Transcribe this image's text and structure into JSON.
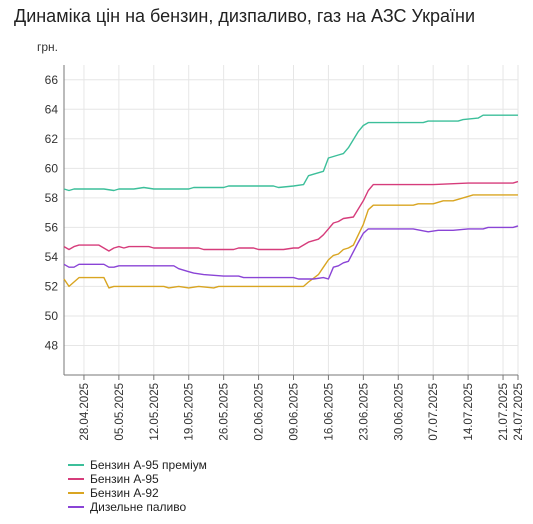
{
  "chart_data": {
    "type": "line",
    "title": "Динаміка цін на бензин, дизпаливо, газ на АЗС України",
    "ylabel": "грн.",
    "xlabel": "",
    "ylim": [
      46,
      67
    ],
    "y_ticks": [
      48,
      50,
      52,
      54,
      56,
      58,
      60,
      62,
      64,
      66
    ],
    "grid": true,
    "legend_placement": "bottom-left",
    "x_start": "2025-04-24",
    "x_end": "2025-07-24",
    "x_tick_labels": [
      {
        "label": "28.04.2025",
        "date": "2025-04-28"
      },
      {
        "label": "05.05.2025",
        "date": "2025-05-05"
      },
      {
        "label": "12.05.2025",
        "date": "2025-05-12"
      },
      {
        "label": "19.05.2025",
        "date": "2025-05-19"
      },
      {
        "label": "26.05.2025",
        "date": "2025-05-26"
      },
      {
        "label": "02.06.2025",
        "date": "2025-06-02"
      },
      {
        "label": "09.06.2025",
        "date": "2025-06-09"
      },
      {
        "label": "16.06.2025",
        "date": "2025-06-16"
      },
      {
        "label": "23.06.2025",
        "date": "2025-06-23"
      },
      {
        "label": "30.06.2025",
        "date": "2025-06-30"
      },
      {
        "label": "07.07.2025",
        "date": "2025-07-07"
      },
      {
        "label": "14.07.2025",
        "date": "2025-07-14"
      },
      {
        "label": "21.07.2025",
        "date": "2025-07-21"
      },
      {
        "label": "24.07.2025",
        "date": "2025-07-24"
      }
    ],
    "series": [
      {
        "name": "Бензин А-95 преміум",
        "color": "#3cbf9a",
        "points": [
          [
            "2025-04-24",
            58.6
          ],
          [
            "2025-04-25",
            58.5
          ],
          [
            "2025-04-26",
            58.6
          ],
          [
            "2025-04-28",
            58.6
          ],
          [
            "2025-05-02",
            58.6
          ],
          [
            "2025-05-04",
            58.5
          ],
          [
            "2025-05-05",
            58.6
          ],
          [
            "2025-05-08",
            58.6
          ],
          [
            "2025-05-10",
            58.7
          ],
          [
            "2025-05-12",
            58.6
          ],
          [
            "2025-05-19",
            58.6
          ],
          [
            "2025-05-20",
            58.7
          ],
          [
            "2025-05-26",
            58.7
          ],
          [
            "2025-05-27",
            58.8
          ],
          [
            "2025-06-02",
            58.8
          ],
          [
            "2025-06-05",
            58.8
          ],
          [
            "2025-06-06",
            58.7
          ],
          [
            "2025-06-09",
            58.8
          ],
          [
            "2025-06-11",
            58.9
          ],
          [
            "2025-06-12",
            59.5
          ],
          [
            "2025-06-13",
            59.6
          ],
          [
            "2025-06-15",
            59.8
          ],
          [
            "2025-06-16",
            60.7
          ],
          [
            "2025-06-18",
            60.9
          ],
          [
            "2025-06-19",
            61.0
          ],
          [
            "2025-06-20",
            61.4
          ],
          [
            "2025-06-22",
            62.5
          ],
          [
            "2025-06-23",
            62.9
          ],
          [
            "2025-06-24",
            63.1
          ],
          [
            "2025-06-30",
            63.1
          ],
          [
            "2025-07-05",
            63.1
          ],
          [
            "2025-07-06",
            63.2
          ],
          [
            "2025-07-12",
            63.2
          ],
          [
            "2025-07-13",
            63.3
          ],
          [
            "2025-07-16",
            63.4
          ],
          [
            "2025-07-17",
            63.6
          ],
          [
            "2025-07-24",
            63.6
          ]
        ]
      },
      {
        "name": "Бензин А-95",
        "color": "#d63c7b",
        "points": [
          [
            "2025-04-24",
            54.7
          ],
          [
            "2025-04-25",
            54.5
          ],
          [
            "2025-04-26",
            54.7
          ],
          [
            "2025-04-27",
            54.8
          ],
          [
            "2025-05-01",
            54.8
          ],
          [
            "2025-05-03",
            54.4
          ],
          [
            "2025-05-04",
            54.6
          ],
          [
            "2025-05-05",
            54.7
          ],
          [
            "2025-05-06",
            54.6
          ],
          [
            "2025-05-07",
            54.7
          ],
          [
            "2025-05-11",
            54.7
          ],
          [
            "2025-05-12",
            54.6
          ],
          [
            "2025-05-21",
            54.6
          ],
          [
            "2025-05-22",
            54.5
          ],
          [
            "2025-05-28",
            54.5
          ],
          [
            "2025-05-29",
            54.6
          ],
          [
            "2025-06-01",
            54.6
          ],
          [
            "2025-06-02",
            54.5
          ],
          [
            "2025-06-07",
            54.5
          ],
          [
            "2025-06-09",
            54.6
          ],
          [
            "2025-06-10",
            54.6
          ],
          [
            "2025-06-12",
            55.0
          ],
          [
            "2025-06-14",
            55.2
          ],
          [
            "2025-06-15",
            55.5
          ],
          [
            "2025-06-17",
            56.3
          ],
          [
            "2025-06-18",
            56.4
          ],
          [
            "2025-06-19",
            56.6
          ],
          [
            "2025-06-21",
            56.7
          ],
          [
            "2025-06-23",
            57.8
          ],
          [
            "2025-06-24",
            58.5
          ],
          [
            "2025-06-25",
            58.9
          ],
          [
            "2025-07-07",
            58.9
          ],
          [
            "2025-07-14",
            59.0
          ],
          [
            "2025-07-23",
            59.0
          ],
          [
            "2025-07-24",
            59.1
          ]
        ]
      },
      {
        "name": "Бензин А-92",
        "color": "#d9a521",
        "points": [
          [
            "2025-04-24",
            52.5
          ],
          [
            "2025-04-25",
            52.0
          ],
          [
            "2025-04-26",
            52.3
          ],
          [
            "2025-04-27",
            52.6
          ],
          [
            "2025-05-02",
            52.6
          ],
          [
            "2025-05-03",
            51.9
          ],
          [
            "2025-05-04",
            52.0
          ],
          [
            "2025-05-10",
            52.0
          ],
          [
            "2025-05-14",
            52.0
          ],
          [
            "2025-05-15",
            51.9
          ],
          [
            "2025-05-17",
            52.0
          ],
          [
            "2025-05-19",
            51.9
          ],
          [
            "2025-05-21",
            52.0
          ],
          [
            "2025-05-24",
            51.9
          ],
          [
            "2025-05-25",
            52.0
          ],
          [
            "2025-06-02",
            52.0
          ],
          [
            "2025-06-11",
            52.0
          ],
          [
            "2025-06-12",
            52.3
          ],
          [
            "2025-06-14",
            52.8
          ],
          [
            "2025-06-15",
            53.3
          ],
          [
            "2025-06-16",
            53.8
          ],
          [
            "2025-06-17",
            54.1
          ],
          [
            "2025-06-18",
            54.2
          ],
          [
            "2025-06-19",
            54.5
          ],
          [
            "2025-06-20",
            54.6
          ],
          [
            "2025-06-21",
            54.8
          ],
          [
            "2025-06-23",
            56.2
          ],
          [
            "2025-06-24",
            57.2
          ],
          [
            "2025-06-25",
            57.5
          ],
          [
            "2025-07-03",
            57.5
          ],
          [
            "2025-07-04",
            57.6
          ],
          [
            "2025-07-07",
            57.6
          ],
          [
            "2025-07-09",
            57.8
          ],
          [
            "2025-07-11",
            57.8
          ],
          [
            "2025-07-14",
            58.1
          ],
          [
            "2025-07-15",
            58.2
          ],
          [
            "2025-07-24",
            58.2
          ]
        ]
      },
      {
        "name": "Дизельне паливо",
        "color": "#8a44d6",
        "points": [
          [
            "2025-04-24",
            53.5
          ],
          [
            "2025-04-25",
            53.3
          ],
          [
            "2025-04-26",
            53.3
          ],
          [
            "2025-04-27",
            53.5
          ],
          [
            "2025-05-02",
            53.5
          ],
          [
            "2025-05-03",
            53.3
          ],
          [
            "2025-05-04",
            53.3
          ],
          [
            "2025-05-05",
            53.4
          ],
          [
            "2025-05-16",
            53.4
          ],
          [
            "2025-05-17",
            53.2
          ],
          [
            "2025-05-19",
            53.0
          ],
          [
            "2025-05-20",
            52.9
          ],
          [
            "2025-05-22",
            52.8
          ],
          [
            "2025-05-26",
            52.7
          ],
          [
            "2025-05-29",
            52.7
          ],
          [
            "2025-05-30",
            52.6
          ],
          [
            "2025-06-09",
            52.6
          ],
          [
            "2025-06-10",
            52.5
          ],
          [
            "2025-06-13",
            52.5
          ],
          [
            "2025-06-15",
            52.6
          ],
          [
            "2025-06-16",
            52.5
          ],
          [
            "2025-06-17",
            53.3
          ],
          [
            "2025-06-18",
            53.4
          ],
          [
            "2025-06-19",
            53.6
          ],
          [
            "2025-06-20",
            53.7
          ],
          [
            "2025-06-22",
            55.0
          ],
          [
            "2025-06-23",
            55.6
          ],
          [
            "2025-06-24",
            55.9
          ],
          [
            "2025-06-30",
            55.9
          ],
          [
            "2025-07-03",
            55.9
          ],
          [
            "2025-07-06",
            55.7
          ],
          [
            "2025-07-08",
            55.8
          ],
          [
            "2025-07-11",
            55.8
          ],
          [
            "2025-07-14",
            55.9
          ],
          [
            "2025-07-17",
            55.9
          ],
          [
            "2025-07-18",
            56.0
          ],
          [
            "2025-07-23",
            56.0
          ],
          [
            "2025-07-24",
            56.1
          ]
        ]
      }
    ]
  }
}
